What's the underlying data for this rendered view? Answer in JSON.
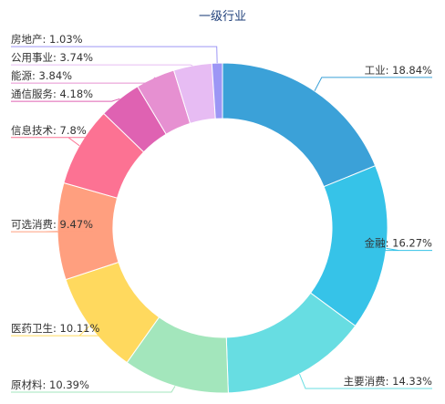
{
  "chart_data": {
    "type": "pie",
    "variant": "donut",
    "title": "一级行业",
    "legend": "none",
    "series": [
      {
        "name": "工业",
        "value": 18.84,
        "label": "工业: 18.84%",
        "color": "#3ba1d8"
      },
      {
        "name": "金融",
        "value": 16.27,
        "label": "金融: 16.27%",
        "color": "#36c3e8"
      },
      {
        "name": "主要消费",
        "value": 14.33,
        "label": "主要消费: 14.33%",
        "color": "#67dde2"
      },
      {
        "name": "原材料",
        "value": 10.39,
        "label": "原材料: 10.39%",
        "color": "#a3e6bc"
      },
      {
        "name": "医药卫生",
        "value": 10.11,
        "label": "医药卫生: 10.11%",
        "color": "#ffd95e"
      },
      {
        "name": "可选消费",
        "value": 9.47,
        "label": "可选消费: 9.47%",
        "color": "#ff9f7f"
      },
      {
        "name": "信息技术",
        "value": 7.8,
        "label": "信息技术: 7.8%",
        "color": "#fc7293"
      },
      {
        "name": "通信服务",
        "value": 4.18,
        "label": "通信服务: 4.18%",
        "color": "#df62b2"
      },
      {
        "name": "能源",
        "value": 3.84,
        "label": "能源: 3.84%",
        "color": "#e690d1"
      },
      {
        "name": "公用事业",
        "value": 3.74,
        "label": "公用事业: 3.74%",
        "color": "#e7bcf3"
      },
      {
        "name": "房地产",
        "value": 1.03,
        "label": "房地产: 1.03%",
        "color": "#9d96f5"
      }
    ]
  }
}
